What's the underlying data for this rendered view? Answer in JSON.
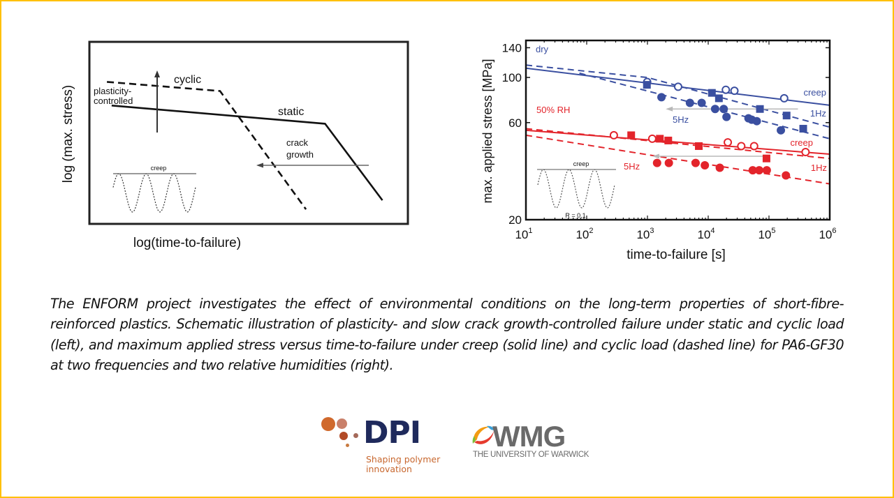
{
  "caption": "The ENFORM project investigates the effect of environmental conditions on the long-term properties of short-fibre-reinforced plastics. Schematic illustration of plasticity- and slow crack growth-controlled failure under static and cyclic load (left), and maximum applied stress versus time-to-failure under creep (solid line) and cyclic load (dashed line) for PA6-GF30 at two frequencies and two relative humidities (right).",
  "logos": {
    "dpi": {
      "name": "DPI",
      "tagline_line1": "Shaping polymer",
      "tagline_line2": "innovation",
      "colors": {
        "navy": "#1f2a5c",
        "orange": "#c8672e"
      }
    },
    "wmg": {
      "name": "WMG",
      "subtitle": "THE UNIVERSITY OF WARWICK",
      "color": "#6a6a6a"
    }
  },
  "frame_color": "#FFC000",
  "chart_data": [
    {
      "type": "line",
      "title": "",
      "xlabel": "log(time-to-failure)",
      "ylabel": "log (max. stress)",
      "grid": false,
      "schematic": true,
      "series": [
        {
          "name": "static",
          "style": "solid",
          "points": [
            [
              0.07,
              0.65
            ],
            [
              0.74,
              0.55
            ],
            [
              0.92,
              0.13
            ]
          ]
        },
        {
          "name": "cyclic",
          "style": "dashed",
          "points": [
            [
              0.055,
              0.78
            ],
            [
              0.41,
              0.73
            ],
            [
              0.68,
              0.08
            ]
          ]
        }
      ],
      "annotations": {
        "cyclic": "cyclic",
        "plasticity_line1": "plasticity-",
        "plasticity_line2": "controlled",
        "static": "static",
        "crack_line1": "crack",
        "crack_line2": "growth",
        "inset_label": "creep"
      }
    },
    {
      "type": "scatter",
      "title": "",
      "xlabel": "time-to-failure [s]",
      "ylabel": "max. applied stress [MPa]",
      "xscale": "log",
      "yscale": "log",
      "xlim": [
        10,
        1000000
      ],
      "ylim": [
        20,
        152
      ],
      "xticks": [
        10,
        100,
        1000,
        10000,
        100000,
        1000000
      ],
      "xtick_labels": [
        [
          "10",
          "1"
        ],
        [
          "10",
          "2"
        ],
        [
          "10",
          "3"
        ],
        [
          "10",
          "4"
        ],
        [
          "10",
          "5"
        ],
        [
          "10",
          "6"
        ]
      ],
      "yticks": [
        20,
        60,
        100,
        140
      ],
      "ytick_labels": [
        "20",
        "60",
        "100",
        "140"
      ],
      "grid": false,
      "colors": {
        "dry": "#3a4fa0",
        "wet": "#e3242b",
        "arrow": "#b8b8b8"
      },
      "group_labels": {
        "dry": "dry",
        "wet": "50% RH"
      },
      "series": [
        {
          "name": "dry creep",
          "group": "dry",
          "marker": "open-circle",
          "line": "solid",
          "fit": [
            [
              10,
              111
            ],
            [
              1000000,
              73
            ]
          ],
          "points": [
            [
              990,
              95
            ],
            [
              3200,
              90
            ],
            [
              19500,
              87
            ],
            [
              27000,
              86
            ],
            [
              178000,
              79
            ]
          ]
        },
        {
          "name": "dry 1Hz",
          "group": "dry",
          "marker": "square",
          "line": "dashed",
          "fit": [
            [
              10,
              115
            ],
            [
              1000,
              100
            ],
            [
              1000000,
              57
            ]
          ],
          "points": [
            [
              980,
              92
            ],
            [
              11500,
              84
            ],
            [
              15000,
              79
            ],
            [
              71000,
              70
            ],
            [
              195000,
              65
            ],
            [
              366000,
              56
            ]
          ]
        },
        {
          "name": "dry 5Hz",
          "group": "dry",
          "marker": "filled-circle",
          "line": "dashed",
          "fit": [
            [
              76,
              105
            ],
            [
              1000000,
              50
            ]
          ],
          "points": [
            [
              1700,
              80
            ],
            [
              5000,
              75
            ],
            [
              7800,
              75
            ],
            [
              13000,
              70
            ],
            [
              18000,
              70
            ],
            [
              20000,
              64
            ],
            [
              46000,
              63
            ],
            [
              52000,
              62
            ],
            [
              63000,
              61
            ],
            [
              157000,
              55
            ]
          ]
        },
        {
          "name": "50% RH creep",
          "group": "wet",
          "marker": "open-circle",
          "line": "solid",
          "fit": [
            [
              10,
              55
            ],
            [
              1000000,
              42
            ]
          ],
          "points": [
            [
              280,
              52
            ],
            [
              1200,
              50
            ],
            [
              21000,
              48
            ],
            [
              35000,
              46
            ],
            [
              57000,
              46
            ],
            [
              400000,
              43
            ]
          ]
        },
        {
          "name": "50% RH 1Hz",
          "group": "wet",
          "marker": "square",
          "line": "dashed",
          "fit": [
            [
              10,
              56
            ],
            [
              1000000,
              40
            ]
          ],
          "points": [
            [
              540,
              52
            ],
            [
              1600,
              50
            ],
            [
              2200,
              49
            ],
            [
              7000,
              46
            ],
            [
              91000,
              40
            ]
          ]
        },
        {
          "name": "50% RH 5Hz",
          "group": "wet",
          "marker": "filled-circle",
          "line": "dashed",
          "fit": [
            [
              10,
              52
            ],
            [
              1000000,
              30
            ]
          ],
          "points": [
            [
              1440,
              38
            ],
            [
              2250,
              38
            ],
            [
              6200,
              38
            ],
            [
              8800,
              37
            ],
            [
              15500,
              36
            ],
            [
              54000,
              35
            ],
            [
              69000,
              35
            ],
            [
              92000,
              35
            ],
            [
              190000,
              33
            ]
          ]
        }
      ],
      "annotations": {
        "dry_creep": "creep",
        "dry_1hz": "1Hz",
        "dry_5hz": "5Hz",
        "wet_creep": "creep",
        "wet_1hz": "1Hz",
        "wet_5hz": "5Hz",
        "inset_label": "creep",
        "inset_ratio": "R = 0.1"
      },
      "arrows": [
        {
          "group": "dry",
          "from_x": 300000,
          "to_x": 2000,
          "y": 70
        },
        {
          "group": "wet",
          "from_x": 100000,
          "to_x": 1200,
          "y": 41
        }
      ]
    }
  ]
}
